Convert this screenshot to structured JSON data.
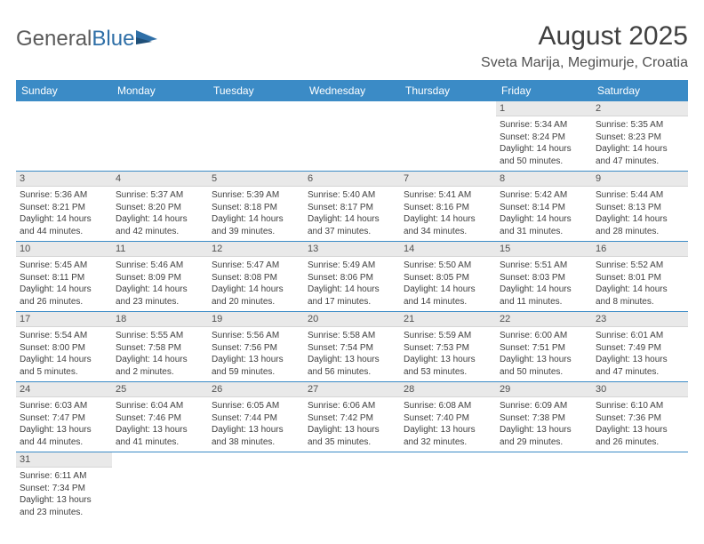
{
  "logo": {
    "textA": "General",
    "textB": "Blue"
  },
  "title": "August 2025",
  "location": "Sveta Marija, Megimurje, Croatia",
  "colors": {
    "header_bg": "#3b8bc6",
    "header_text": "#ffffff",
    "daynum_bg": "#e9e9e9",
    "row_divider": "#3b8bc6",
    "text": "#404040",
    "logo_gray": "#5a5a5a",
    "logo_blue": "#2f6fa7",
    "background": "#ffffff"
  },
  "typography": {
    "title_fontsize": 30,
    "location_fontsize": 16,
    "header_fontsize": 12,
    "cell_fontsize": 10,
    "daynum_fontsize": 11,
    "font_family": "Arial"
  },
  "weekdays": [
    "Sunday",
    "Monday",
    "Tuesday",
    "Wednesday",
    "Thursday",
    "Friday",
    "Saturday"
  ],
  "weeks": [
    [
      null,
      null,
      null,
      null,
      null,
      {
        "n": "1",
        "sunrise": "Sunrise: 5:34 AM",
        "sunset": "Sunset: 8:24 PM",
        "daylight": "Daylight: 14 hours and 50 minutes."
      },
      {
        "n": "2",
        "sunrise": "Sunrise: 5:35 AM",
        "sunset": "Sunset: 8:23 PM",
        "daylight": "Daylight: 14 hours and 47 minutes."
      }
    ],
    [
      {
        "n": "3",
        "sunrise": "Sunrise: 5:36 AM",
        "sunset": "Sunset: 8:21 PM",
        "daylight": "Daylight: 14 hours and 44 minutes."
      },
      {
        "n": "4",
        "sunrise": "Sunrise: 5:37 AM",
        "sunset": "Sunset: 8:20 PM",
        "daylight": "Daylight: 14 hours and 42 minutes."
      },
      {
        "n": "5",
        "sunrise": "Sunrise: 5:39 AM",
        "sunset": "Sunset: 8:18 PM",
        "daylight": "Daylight: 14 hours and 39 minutes."
      },
      {
        "n": "6",
        "sunrise": "Sunrise: 5:40 AM",
        "sunset": "Sunset: 8:17 PM",
        "daylight": "Daylight: 14 hours and 37 minutes."
      },
      {
        "n": "7",
        "sunrise": "Sunrise: 5:41 AM",
        "sunset": "Sunset: 8:16 PM",
        "daylight": "Daylight: 14 hours and 34 minutes."
      },
      {
        "n": "8",
        "sunrise": "Sunrise: 5:42 AM",
        "sunset": "Sunset: 8:14 PM",
        "daylight": "Daylight: 14 hours and 31 minutes."
      },
      {
        "n": "9",
        "sunrise": "Sunrise: 5:44 AM",
        "sunset": "Sunset: 8:13 PM",
        "daylight": "Daylight: 14 hours and 28 minutes."
      }
    ],
    [
      {
        "n": "10",
        "sunrise": "Sunrise: 5:45 AM",
        "sunset": "Sunset: 8:11 PM",
        "daylight": "Daylight: 14 hours and 26 minutes."
      },
      {
        "n": "11",
        "sunrise": "Sunrise: 5:46 AM",
        "sunset": "Sunset: 8:09 PM",
        "daylight": "Daylight: 14 hours and 23 minutes."
      },
      {
        "n": "12",
        "sunrise": "Sunrise: 5:47 AM",
        "sunset": "Sunset: 8:08 PM",
        "daylight": "Daylight: 14 hours and 20 minutes."
      },
      {
        "n": "13",
        "sunrise": "Sunrise: 5:49 AM",
        "sunset": "Sunset: 8:06 PM",
        "daylight": "Daylight: 14 hours and 17 minutes."
      },
      {
        "n": "14",
        "sunrise": "Sunrise: 5:50 AM",
        "sunset": "Sunset: 8:05 PM",
        "daylight": "Daylight: 14 hours and 14 minutes."
      },
      {
        "n": "15",
        "sunrise": "Sunrise: 5:51 AM",
        "sunset": "Sunset: 8:03 PM",
        "daylight": "Daylight: 14 hours and 11 minutes."
      },
      {
        "n": "16",
        "sunrise": "Sunrise: 5:52 AM",
        "sunset": "Sunset: 8:01 PM",
        "daylight": "Daylight: 14 hours and 8 minutes."
      }
    ],
    [
      {
        "n": "17",
        "sunrise": "Sunrise: 5:54 AM",
        "sunset": "Sunset: 8:00 PM",
        "daylight": "Daylight: 14 hours and 5 minutes."
      },
      {
        "n": "18",
        "sunrise": "Sunrise: 5:55 AM",
        "sunset": "Sunset: 7:58 PM",
        "daylight": "Daylight: 14 hours and 2 minutes."
      },
      {
        "n": "19",
        "sunrise": "Sunrise: 5:56 AM",
        "sunset": "Sunset: 7:56 PM",
        "daylight": "Daylight: 13 hours and 59 minutes."
      },
      {
        "n": "20",
        "sunrise": "Sunrise: 5:58 AM",
        "sunset": "Sunset: 7:54 PM",
        "daylight": "Daylight: 13 hours and 56 minutes."
      },
      {
        "n": "21",
        "sunrise": "Sunrise: 5:59 AM",
        "sunset": "Sunset: 7:53 PM",
        "daylight": "Daylight: 13 hours and 53 minutes."
      },
      {
        "n": "22",
        "sunrise": "Sunrise: 6:00 AM",
        "sunset": "Sunset: 7:51 PM",
        "daylight": "Daylight: 13 hours and 50 minutes."
      },
      {
        "n": "23",
        "sunrise": "Sunrise: 6:01 AM",
        "sunset": "Sunset: 7:49 PM",
        "daylight": "Daylight: 13 hours and 47 minutes."
      }
    ],
    [
      {
        "n": "24",
        "sunrise": "Sunrise: 6:03 AM",
        "sunset": "Sunset: 7:47 PM",
        "daylight": "Daylight: 13 hours and 44 minutes."
      },
      {
        "n": "25",
        "sunrise": "Sunrise: 6:04 AM",
        "sunset": "Sunset: 7:46 PM",
        "daylight": "Daylight: 13 hours and 41 minutes."
      },
      {
        "n": "26",
        "sunrise": "Sunrise: 6:05 AM",
        "sunset": "Sunset: 7:44 PM",
        "daylight": "Daylight: 13 hours and 38 minutes."
      },
      {
        "n": "27",
        "sunrise": "Sunrise: 6:06 AM",
        "sunset": "Sunset: 7:42 PM",
        "daylight": "Daylight: 13 hours and 35 minutes."
      },
      {
        "n": "28",
        "sunrise": "Sunrise: 6:08 AM",
        "sunset": "Sunset: 7:40 PM",
        "daylight": "Daylight: 13 hours and 32 minutes."
      },
      {
        "n": "29",
        "sunrise": "Sunrise: 6:09 AM",
        "sunset": "Sunset: 7:38 PM",
        "daylight": "Daylight: 13 hours and 29 minutes."
      },
      {
        "n": "30",
        "sunrise": "Sunrise: 6:10 AM",
        "sunset": "Sunset: 7:36 PM",
        "daylight": "Daylight: 13 hours and 26 minutes."
      }
    ],
    [
      {
        "n": "31",
        "sunrise": "Sunrise: 6:11 AM",
        "sunset": "Sunset: 7:34 PM",
        "daylight": "Daylight: 13 hours and 23 minutes."
      },
      null,
      null,
      null,
      null,
      null,
      null
    ]
  ]
}
